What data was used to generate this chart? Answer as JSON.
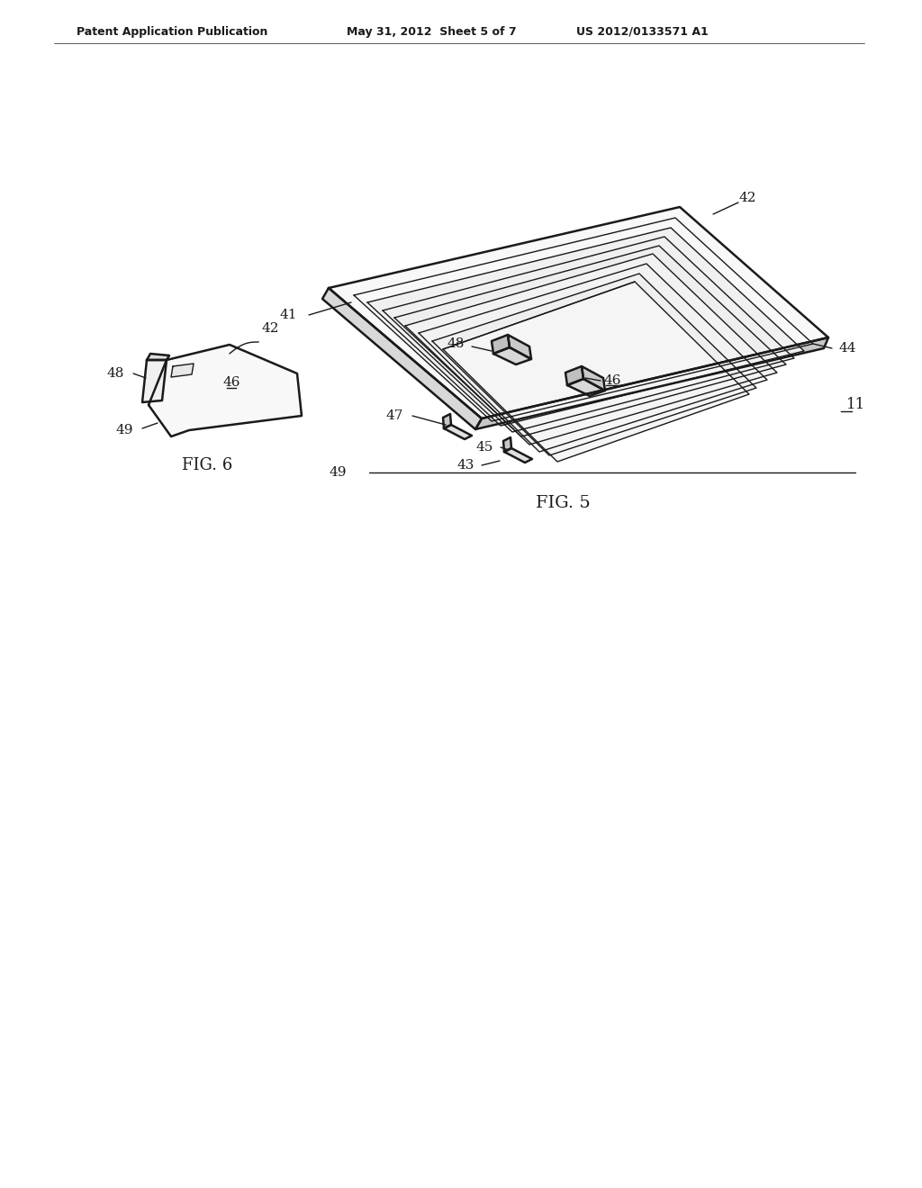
{
  "bg_color": "#ffffff",
  "line_color": "#1a1a1a",
  "header_left": "Patent Application Publication",
  "header_center": "May 31, 2012  Sheet 5 of 7",
  "header_right": "US 2012/0133571 A1",
  "fig5_caption": "FIG. 5",
  "fig6_caption": "FIG. 6"
}
